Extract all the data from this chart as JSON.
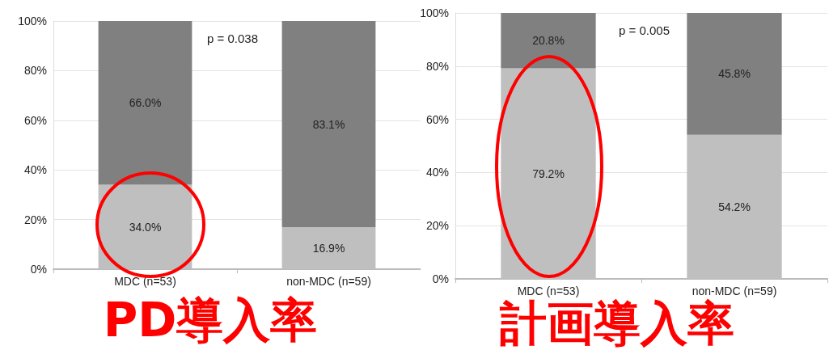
{
  "chart_data": [
    {
      "type": "bar",
      "title": "PD導入率",
      "categories": [
        "MDC (n=53)",
        "non-MDC (n=59)"
      ],
      "stacked": true,
      "series": [
        {
          "color": "#bfbfbf",
          "values": [
            34.0,
            16.9
          ],
          "value_labels": [
            "34.0%",
            "16.9%"
          ]
        },
        {
          "color": "#808080",
          "values": [
            66.0,
            83.1
          ],
          "value_labels": [
            "66.0%",
            "83.1%"
          ]
        }
      ],
      "ylim": [
        0,
        100
      ],
      "yticks": [
        {
          "value": 0,
          "label": "0%"
        },
        {
          "value": 20,
          "label": "20%"
        },
        {
          "value": 40,
          "label": "40%"
        },
        {
          "value": 60,
          "label": "60%"
        },
        {
          "value": 80,
          "label": "80%"
        },
        {
          "value": 100,
          "label": "100%"
        }
      ],
      "grid": "y",
      "annotations": [
        "p = 0.038"
      ]
    },
    {
      "type": "bar",
      "title": "計画導入率",
      "categories": [
        "MDC (n=53)",
        "non-MDC (n=59)"
      ],
      "stacked": true,
      "series": [
        {
          "color": "#bfbfbf",
          "values": [
            79.2,
            54.2
          ],
          "value_labels": [
            "79.2%",
            "54.2%"
          ]
        },
        {
          "color": "#808080",
          "values": [
            20.8,
            45.8
          ],
          "value_labels": [
            "20.8%",
            "45.8%"
          ]
        }
      ],
      "ylim": [
        0,
        100
      ],
      "yticks": [
        {
          "value": 0,
          "label": "0%"
        },
        {
          "value": 20,
          "label": "20%"
        },
        {
          "value": 40,
          "label": "40%"
        },
        {
          "value": 60,
          "label": "60%"
        },
        {
          "value": 80,
          "label": "80%"
        },
        {
          "value": 100,
          "label": "100%"
        }
      ],
      "grid": "y",
      "annotations": [
        "p = 0.005"
      ]
    }
  ]
}
